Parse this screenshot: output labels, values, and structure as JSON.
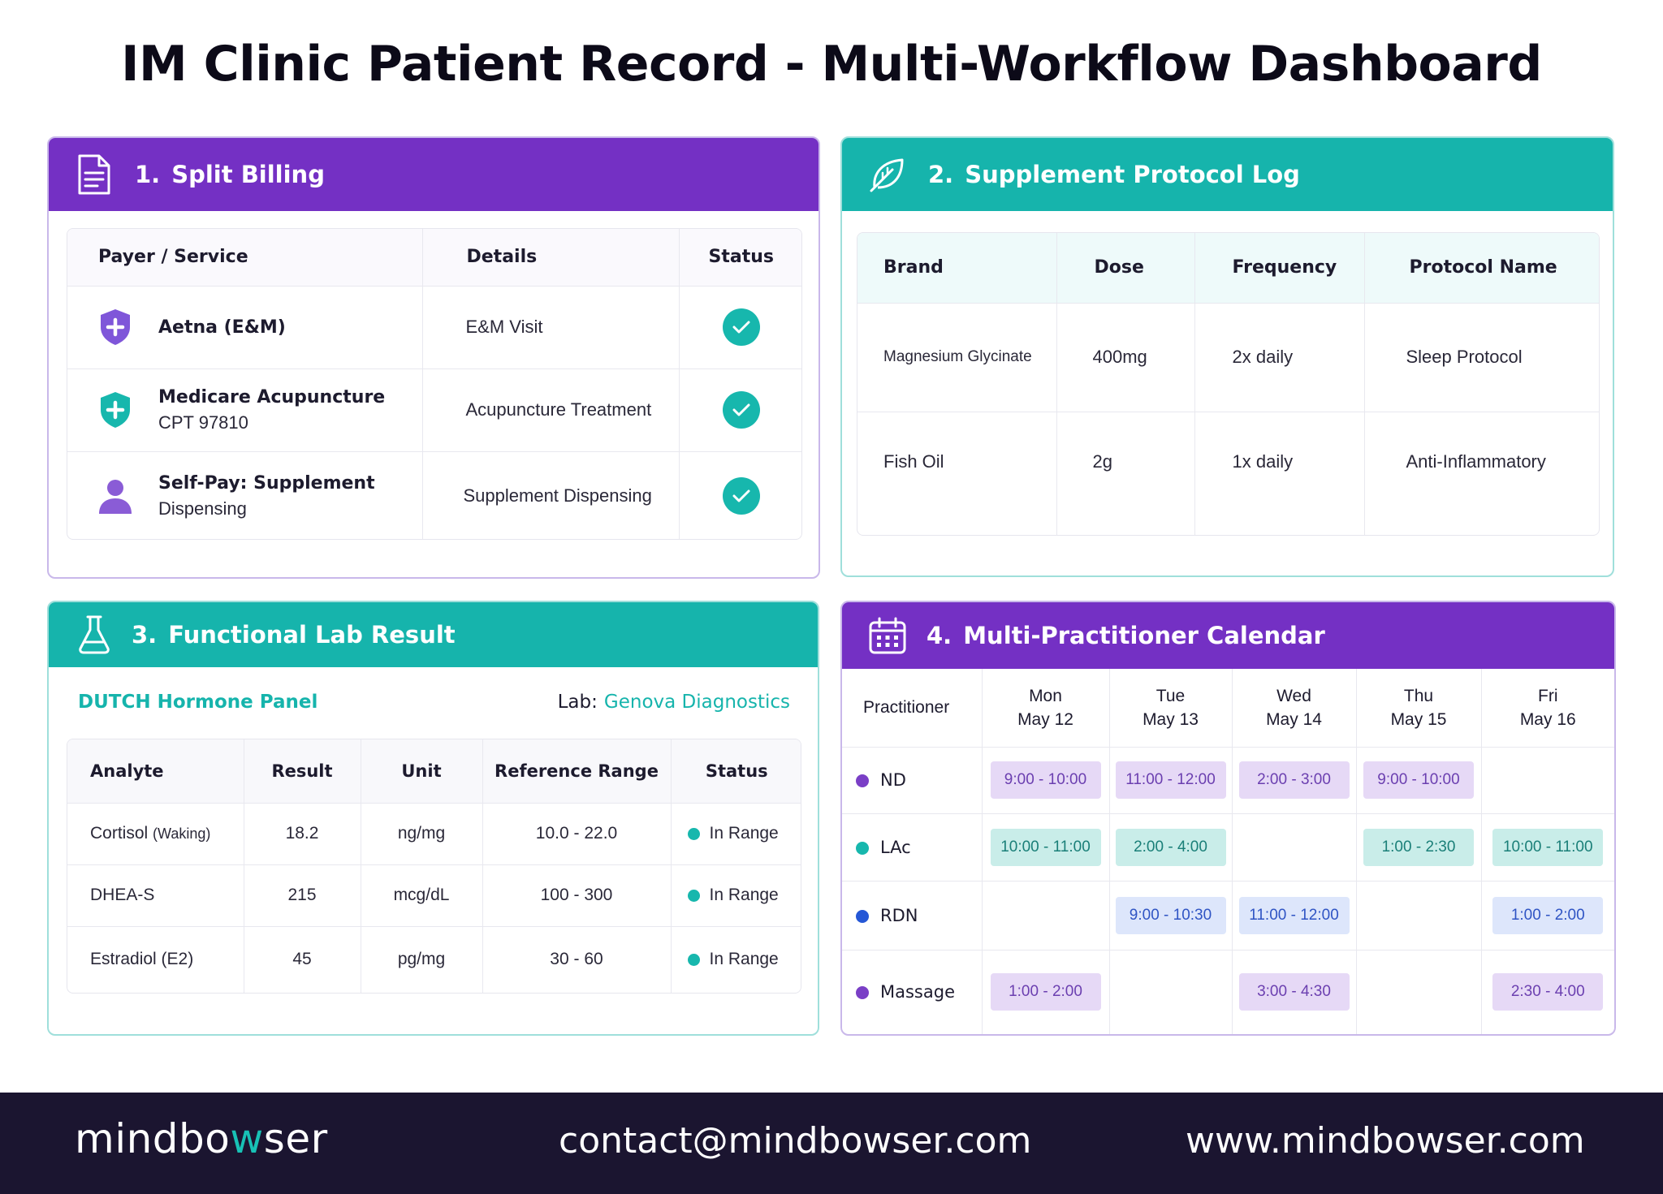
{
  "page": {
    "title": "IM Clinic Patient Record - Multi-Workflow Dashboard"
  },
  "billing": {
    "number": "1.",
    "title": "Split Billing",
    "icon": "document-icon",
    "headers": [
      "Payer / Service",
      "Details",
      "Status"
    ],
    "rows": [
      {
        "name": "Aetna (E&M)",
        "sub": "",
        "details": "E&M Visit",
        "icon": "shield-plus-icon",
        "icon_color": "#7f56d9",
        "status": "check"
      },
      {
        "name": "Medicare Acupuncture",
        "sub": "CPT 97810",
        "details": "Acupuncture Treatment",
        "icon": "shield-plus-icon",
        "icon_color": "#17b7ad",
        "status": "check"
      },
      {
        "name": "Self-Pay: Supplement",
        "sub": "Dispensing",
        "details": "Supplement Dispensing",
        "icon": "person-icon",
        "icon_color": "#8a5cd6",
        "status": "check"
      }
    ]
  },
  "supplement": {
    "number": "2.",
    "title": "Supplement Protocol Log",
    "icon": "leaf-icon",
    "headers": [
      "Brand",
      "Dose",
      "Frequency",
      "Protocol Name"
    ],
    "rows": [
      {
        "brand": "Magnesium Glycinate",
        "dose": "400mg",
        "frequency": "2x daily",
        "protocol": "Sleep Protocol"
      },
      {
        "brand": "Fish Oil",
        "dose": "2g",
        "frequency": "1x daily",
        "protocol": "Anti-Inflammatory"
      }
    ]
  },
  "lab": {
    "number": "3.",
    "title": "Functional Lab Result",
    "icon": "flask-icon",
    "panel": "DUTCH Hormone Panel",
    "lab_label": "Lab:",
    "lab_name": "Genova Diagnostics",
    "headers": [
      "Analyte",
      "Result",
      "Unit",
      "Reference Range",
      "Status"
    ],
    "rows": [
      {
        "analyte": "Cortisol",
        "analyte_note": "(Waking)",
        "result": "18.2",
        "unit": "ng/mg",
        "range": "10.0 - 22.0",
        "status": "In Range"
      },
      {
        "analyte": "DHEA-S",
        "analyte_note": "",
        "result": "215",
        "unit": "mcg/dL",
        "range": "100 - 300",
        "status": "In Range"
      },
      {
        "analyte": "Estradiol (E2)",
        "analyte_note": "",
        "result": "45",
        "unit": "pg/mg",
        "range": "30 - 60",
        "status": "In Range"
      }
    ]
  },
  "calendar": {
    "number": "4.",
    "title": "Multi-Practitioner Calendar",
    "icon": "calendar-icon",
    "practitioner_header": "Practitioner",
    "days": [
      {
        "day": "Mon",
        "date": "May 12"
      },
      {
        "day": "Tue",
        "date": "May 13"
      },
      {
        "day": "Wed",
        "date": "May 14"
      },
      {
        "day": "Thu",
        "date": "May 15"
      },
      {
        "day": "Fri",
        "date": "May 16"
      }
    ],
    "rows": [
      {
        "name": "ND",
        "dot_color": "#7a3fc6",
        "kind": "nd",
        "slots": [
          "9:00 - 10:00",
          "11:00 - 12:00",
          "2:00 - 3:00",
          "9:00 - 10:00",
          ""
        ]
      },
      {
        "name": "LAc",
        "dot_color": "#17b7ad",
        "kind": "lac",
        "slots": [
          "10:00 - 11:00",
          "2:00 - 4:00",
          "",
          "1:00 - 2:30",
          "10:00 - 11:00"
        ]
      },
      {
        "name": "RDN",
        "dot_color": "#2557d6",
        "kind": "rdn",
        "slots": [
          "",
          "9:00 - 10:30",
          "11:00 - 12:00",
          "",
          "1:00 - 2:00"
        ]
      },
      {
        "name": "Massage",
        "dot_color": "#7a3fc6",
        "kind": "mas",
        "slots": [
          "1:00 - 2:00",
          "",
          "3:00 - 4:30",
          "",
          "2:30 - 4:00"
        ]
      }
    ]
  },
  "footer": {
    "logo_pre": "mindbo",
    "logo_w": "w",
    "logo_post": "ser",
    "email": "contact@mindbowser.com",
    "website": "www.mindbowser.com"
  },
  "colors": {
    "purple": "#7430c4",
    "teal": "#16b4ac",
    "footer_bg": "#1b1530"
  }
}
